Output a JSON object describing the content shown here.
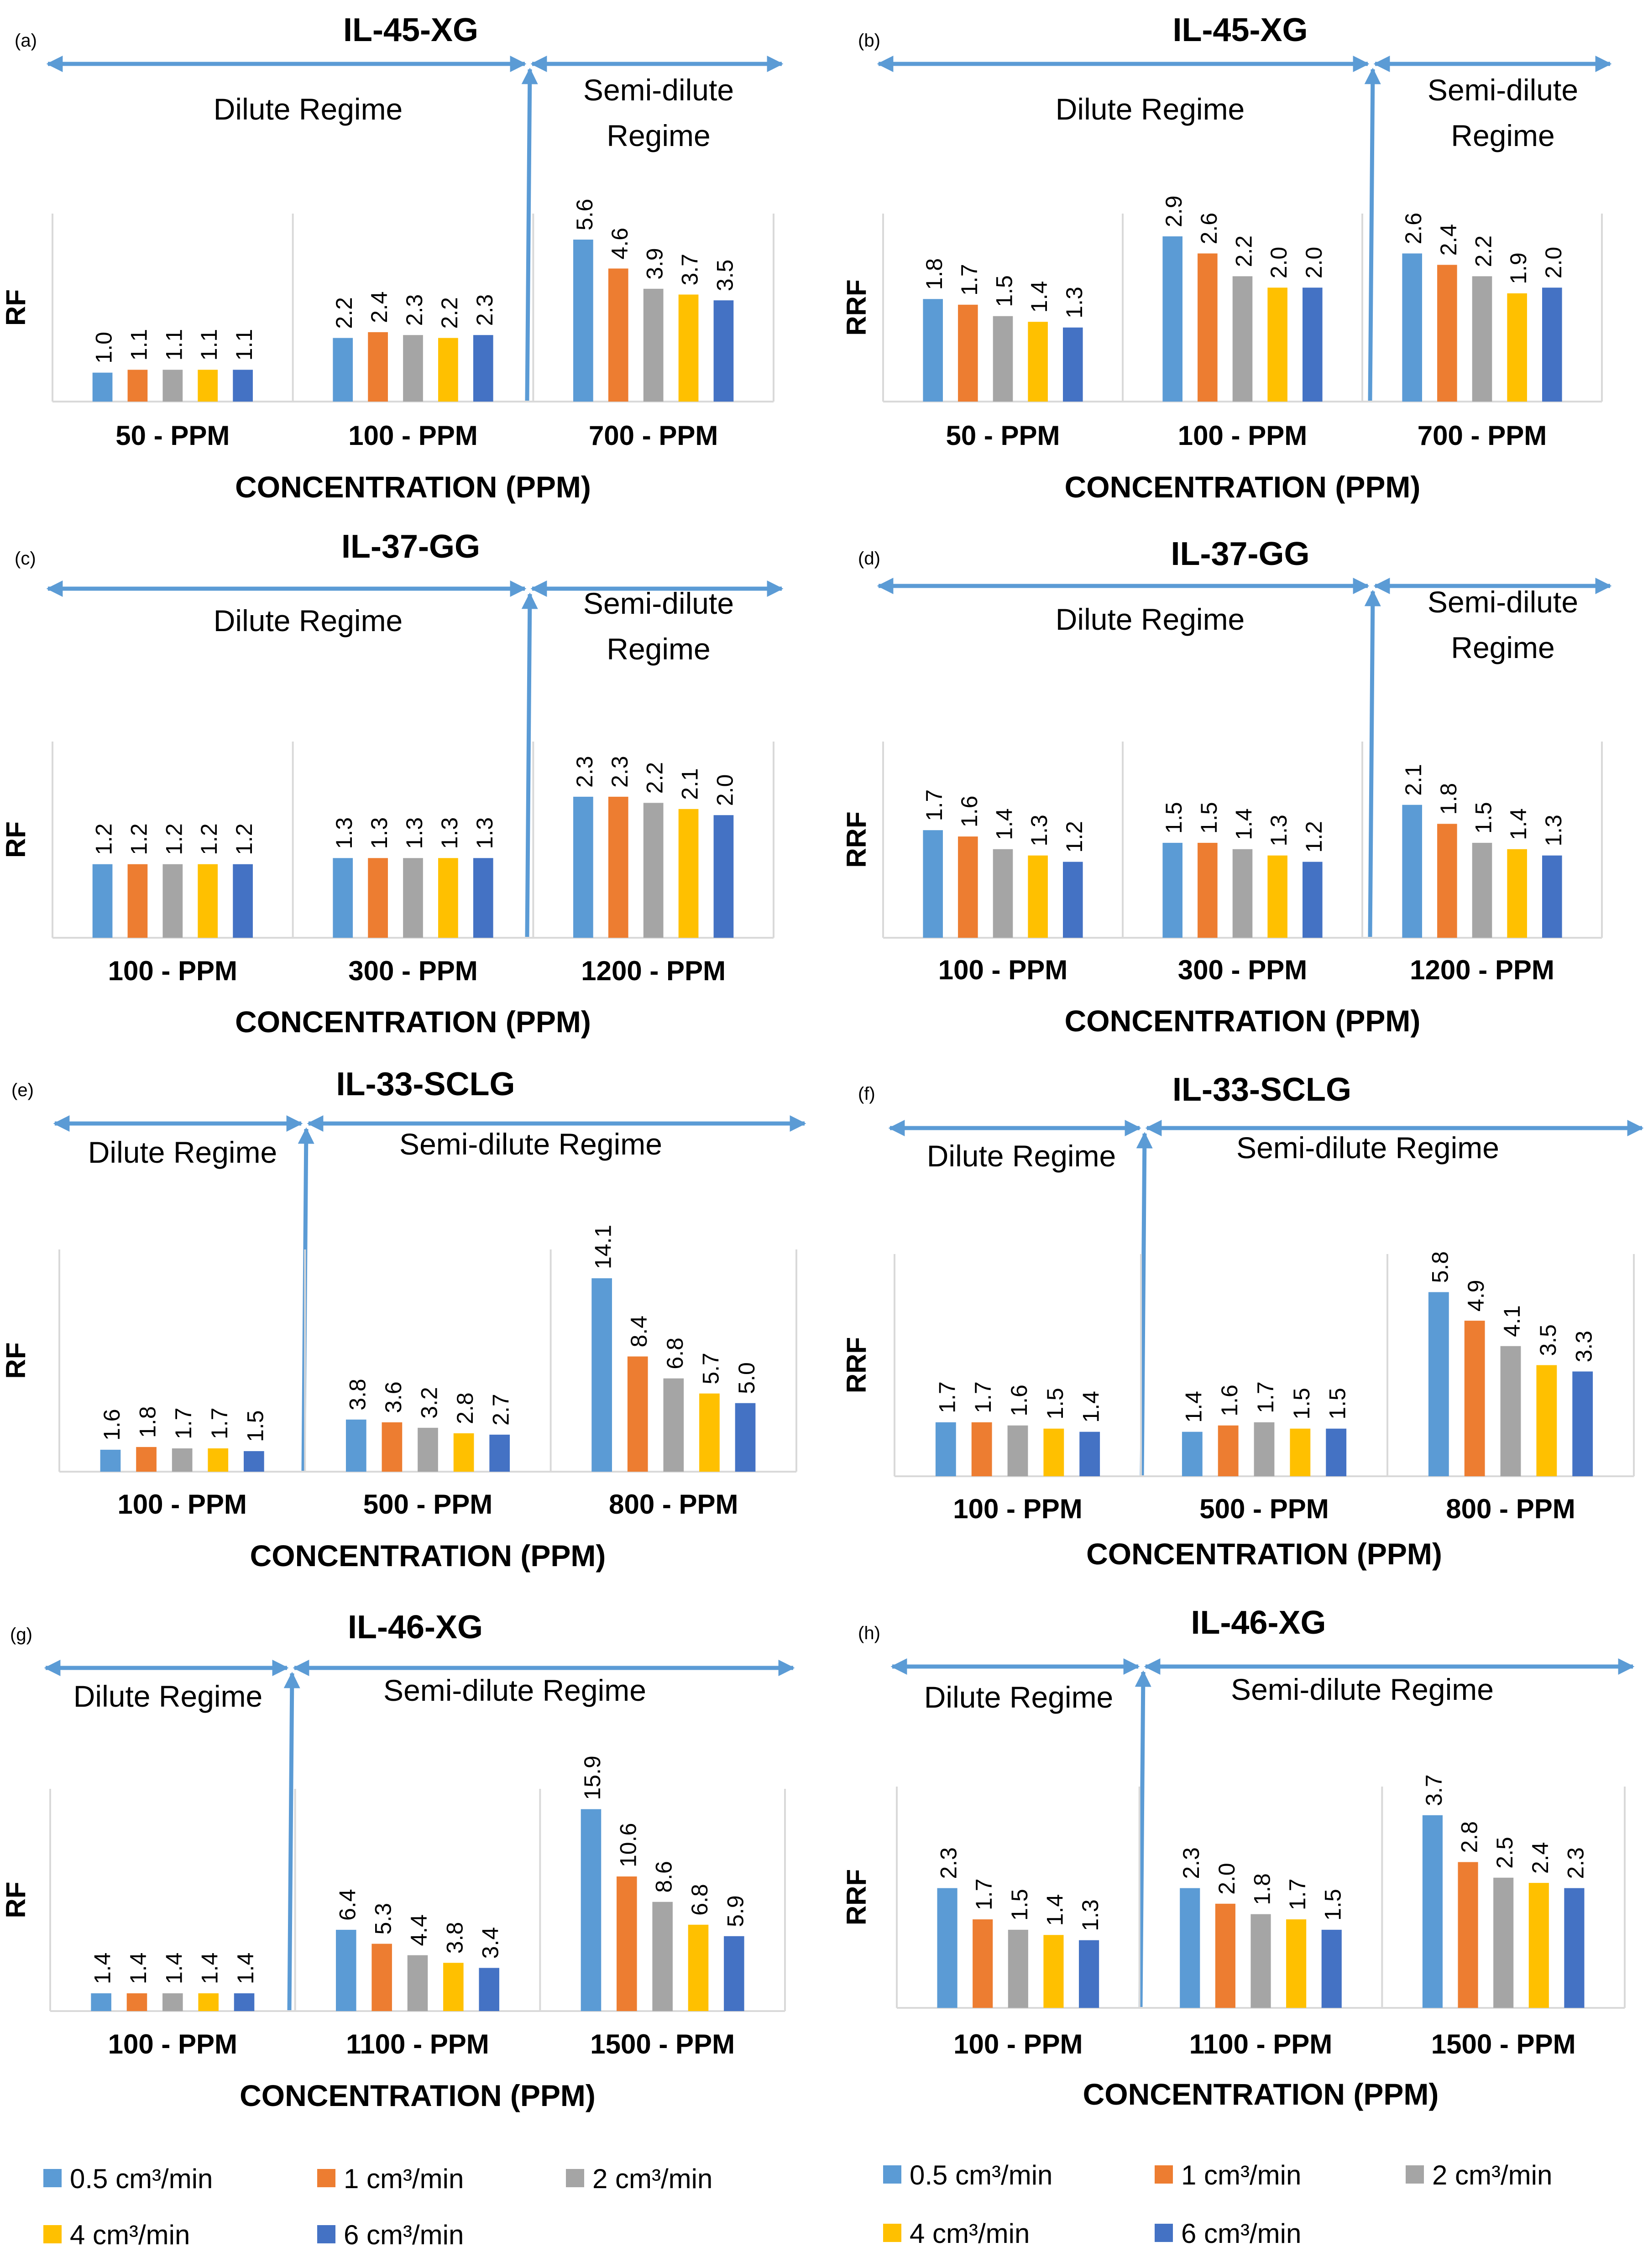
{
  "legend": [
    {
      "label": "0.5 cm³/min",
      "color": "#5B9BD5"
    },
    {
      "label": "1 cm³/min",
      "color": "#ED7D31"
    },
    {
      "label": "2 cm³/min",
      "color": "#A5A5A5"
    },
    {
      "label": "4 cm³/min",
      "color": "#FFC000"
    },
    {
      "label": "6 cm³/min",
      "color": "#4472C4"
    }
  ],
  "colors": {
    "axis": "#D9D9D9",
    "arrow": "#5B9BD5",
    "text": "#000000"
  },
  "chart_data": [
    {
      "panel": "(a)",
      "type": "bar",
      "title": "IL-45-XG",
      "ylabel": "RF",
      "xlabel": "CONCENTRATION (PPM)",
      "ylim": [
        0,
        6.5
      ],
      "dilute_label": "Dilute Regime",
      "semi_label_lines": [
        "Semi-dilute",
        "Regime"
      ],
      "categories": [
        "50 - PPM",
        "100 - PPM",
        "700 - PPM"
      ],
      "values": [
        [
          1.0,
          1.1,
          1.1,
          1.1,
          1.1
        ],
        [
          2.2,
          2.4,
          2.3,
          2.2,
          2.3
        ],
        [
          5.6,
          4.6,
          3.9,
          3.7,
          3.5
        ]
      ],
      "value_labels": [
        [
          "1.0",
          "1.1",
          "1.1",
          "1.1",
          "1.1"
        ],
        [
          "2.2",
          "2.4",
          "2.3",
          "2.2",
          "2.3"
        ],
        [
          "5.6",
          "4.6",
          "3.9",
          "3.7",
          "3.5"
        ]
      ]
    },
    {
      "panel": "(b)",
      "type": "bar",
      "title": "IL-45-XG",
      "ylabel": "RRF",
      "xlabel": "CONCENTRATION (PPM)",
      "ylim": [
        0,
        3.3
      ],
      "dilute_label": "Dilute Regime",
      "semi_label_lines": [
        "Semi-dilute",
        "Regime"
      ],
      "categories": [
        "50 - PPM",
        "100 - PPM",
        "700 - PPM"
      ],
      "values": [
        [
          1.8,
          1.7,
          1.5,
          1.4,
          1.3
        ],
        [
          2.9,
          2.6,
          2.2,
          2.0,
          2.0
        ],
        [
          2.6,
          2.4,
          2.2,
          1.9,
          2.0
        ]
      ],
      "value_labels": [
        [
          "1.8",
          "1.7",
          "1.5",
          "1.4",
          "1.3"
        ],
        [
          "2.9",
          "2.6",
          "2.2",
          "2.0",
          "2.0"
        ],
        [
          "2.6",
          "2.4",
          "2.2",
          "1.9",
          "2.0"
        ]
      ]
    },
    {
      "panel": "(c)",
      "type": "bar",
      "title": "IL-37-GG",
      "ylabel": "RF",
      "xlabel": "CONCENTRATION (PPM)",
      "ylim": [
        0,
        3.2
      ],
      "dilute_label": "Dilute Regime",
      "semi_label_lines": [
        "Semi-dilute",
        "Regime"
      ],
      "categories": [
        "100 - PPM",
        "300 - PPM",
        "1200 - PPM"
      ],
      "values": [
        [
          1.2,
          1.2,
          1.2,
          1.2,
          1.2
        ],
        [
          1.3,
          1.3,
          1.3,
          1.3,
          1.3
        ],
        [
          2.3,
          2.3,
          2.2,
          2.1,
          2.0
        ]
      ],
      "value_labels": [
        [
          "1.2",
          "1.2",
          "1.2",
          "1.2",
          "1.2"
        ],
        [
          "1.3",
          "1.3",
          "1.3",
          "1.3",
          "1.3"
        ],
        [
          "2.3",
          "2.3",
          "2.2",
          "2.1",
          "2.0"
        ]
      ]
    },
    {
      "panel": "(d)",
      "type": "bar",
      "title": "IL-37-GG",
      "ylabel": "RRF",
      "xlabel": "CONCENTRATION (PPM)",
      "ylim": [
        0,
        3.1
      ],
      "dilute_label": "Dilute Regime",
      "semi_label_lines": [
        "Semi-dilute",
        "Regime"
      ],
      "categories": [
        "100 - PPM",
        "300 - PPM",
        "1200 - PPM"
      ],
      "values": [
        [
          1.7,
          1.6,
          1.4,
          1.3,
          1.2
        ],
        [
          1.5,
          1.5,
          1.4,
          1.3,
          1.2
        ],
        [
          2.1,
          1.8,
          1.5,
          1.4,
          1.3
        ]
      ],
      "value_labels": [
        [
          "1.7",
          "1.6",
          "1.4",
          "1.3",
          "1.2"
        ],
        [
          "1.5",
          "1.5",
          "1.4",
          "1.3",
          "1.2"
        ],
        [
          "2.1",
          "1.8",
          "1.5",
          "1.4",
          "1.3"
        ]
      ]
    },
    {
      "panel": "(e)",
      "type": "bar",
      "title": "IL-33-SCLG",
      "ylabel": "RF",
      "xlabel": "CONCENTRATION (PPM)",
      "ylim": [
        0,
        16.2
      ],
      "dilute_label": "Dilute Regime",
      "semi_label_lines": [
        "Semi-dilute Regime"
      ],
      "categories": [
        "100 - PPM",
        "500 - PPM",
        "800 - PPM"
      ],
      "values": [
        [
          1.6,
          1.8,
          1.7,
          1.7,
          1.5
        ],
        [
          3.8,
          3.6,
          3.2,
          2.8,
          2.7
        ],
        [
          14.1,
          8.4,
          6.8,
          5.7,
          5.0
        ]
      ],
      "value_labels": [
        [
          "1.6",
          "1.8",
          "1.7",
          "1.7",
          "1.5"
        ],
        [
          "3.8",
          "3.6",
          "3.2",
          "2.8",
          "2.7"
        ],
        [
          "14.1",
          "8.4",
          "6.8",
          "5.7",
          "5.0"
        ]
      ]
    },
    {
      "panel": "(f)",
      "type": "bar",
      "title": "IL-33-SCLG",
      "ylabel": "RRF",
      "xlabel": "CONCENTRATION (PPM)",
      "ylim": [
        0,
        7.0
      ],
      "dilute_label": "Dilute Regime",
      "semi_label_lines": [
        "Semi-dilute Regime"
      ],
      "categories": [
        "100 - PPM",
        "500 - PPM",
        "800 - PPM"
      ],
      "values": [
        [
          1.7,
          1.7,
          1.6,
          1.5,
          1.4
        ],
        [
          1.4,
          1.6,
          1.7,
          1.5,
          1.5
        ],
        [
          5.8,
          4.9,
          4.1,
          3.5,
          3.3
        ]
      ],
      "value_labels": [
        [
          "1.7",
          "1.7",
          "1.6",
          "1.5",
          "1.4"
        ],
        [
          "1.4",
          "1.6",
          "1.7",
          "1.5",
          "1.5"
        ],
        [
          "5.8",
          "4.9",
          "4.1",
          "3.5",
          "3.3"
        ]
      ]
    },
    {
      "panel": "(g)",
      "type": "bar",
      "title": "IL-46-XG",
      "ylabel": "RF",
      "xlabel": "CONCENTRATION (PPM)",
      "ylim": [
        0,
        17.5
      ],
      "dilute_label": "Dilute Regime",
      "semi_label_lines": [
        "Semi-dilute Regime"
      ],
      "categories": [
        "100 - PPM",
        "1100 - PPM",
        "1500 - PPM"
      ],
      "values": [
        [
          1.4,
          1.4,
          1.4,
          1.4,
          1.4
        ],
        [
          6.4,
          5.3,
          4.4,
          3.8,
          3.4
        ],
        [
          15.9,
          10.6,
          8.6,
          6.8,
          5.9
        ]
      ],
      "value_labels": [
        [
          "1.4",
          "1.4",
          "1.4",
          "1.4",
          "1.4"
        ],
        [
          "6.4",
          "5.3",
          "4.4",
          "3.8",
          "3.4"
        ],
        [
          "15.9",
          "10.6",
          "8.6",
          "6.8",
          "5.9"
        ]
      ]
    },
    {
      "panel": "(h)",
      "type": "bar",
      "title": "IL-46-XG",
      "ylabel": "RRF",
      "xlabel": "CONCENTRATION (PPM)",
      "ylim": [
        0,
        4.25
      ],
      "dilute_label": "Dilute Regime",
      "semi_label_lines": [
        "Semi-dilute Regime"
      ],
      "categories": [
        "100 - PPM",
        "1100 - PPM",
        "1500 - PPM"
      ],
      "values": [
        [
          2.3,
          1.7,
          1.5,
          1.4,
          1.3
        ],
        [
          2.3,
          2.0,
          1.8,
          1.7,
          1.5
        ],
        [
          3.7,
          2.8,
          2.5,
          2.4,
          2.3
        ]
      ],
      "value_labels": [
        [
          "2.3",
          "1.7",
          "1.5",
          "1.4",
          "1.3"
        ],
        [
          "2.3",
          "2.0",
          "1.8",
          "1.7",
          "1.5"
        ],
        [
          "3.7",
          "2.8",
          "2.5",
          "2.4",
          "2.3"
        ]
      ]
    }
  ]
}
